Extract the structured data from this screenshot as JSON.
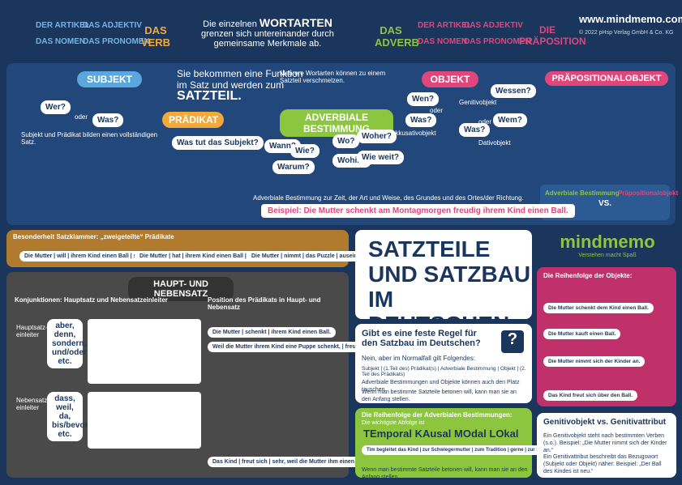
{
  "header": {
    "left_labels": [
      "DER ARTIKEL",
      "DAS ADJEKTIV",
      "DAS NOMEN",
      "DAS PRONOMEN"
    ],
    "verb": "DAS VERB",
    "intro_a": "Die einzelnen",
    "intro_b": "WORTARTEN",
    "intro_c": "grenzen sich untereinander durch gemeinsame Merkmale ab.",
    "adverb": "DAS ADVERB",
    "right_labels": [
      "DER ARTIKEL",
      "DAS ADJEKTIV",
      "DAS NOMEN",
      "DAS PRONOMEN"
    ],
    "praeposition": "DIE PRÄPOSITION",
    "url": "www.mindmemo.com",
    "copyright": "© 2022 pHsp Verlag GmbH & Co. KG"
  },
  "satzteil": {
    "line1": "Sie bekommen eine Funktion",
    "line2": "im Satz und werden zum",
    "line3": "SATZTEIL."
  },
  "subjekt": {
    "title": "SUBJEKT",
    "q1": "Wer?",
    "or": "oder",
    "q2": "Was?",
    "text": "Subjekt und Prädikat bilden einen vollständigen Satz."
  },
  "praedikat": {
    "title": "PRÄDIKAT",
    "question": "Was tut das Subjekt?"
  },
  "adverbiale": {
    "intro": "Mehrere Wortarten können zu einem Satzteil verschmelzen.",
    "title": "ADVERBIALE BESTIMMUNG",
    "questions": [
      "Wann?",
      "Wie?",
      "Warum?",
      "Wo?",
      "Woher?",
      "Wohin?",
      "Wie weit?"
    ],
    "text": "Adverbiale Bestimmung zur Zeit, der Art und Weise, des Grundes und des Ortes/der Richtung."
  },
  "objekt": {
    "title": "OBJEKT",
    "q_acc": "Wen?",
    "or1": "oder",
    "q_acc2": "Was?",
    "acc": "Akkusativobjekt",
    "gen": "Genitivobjekt",
    "q_gen": "Wessen?",
    "q_dat1": "Wem?",
    "or2": "oder",
    "q_dat2": "Was?",
    "dat": "Dativobjekt"
  },
  "praepositionalobjekt": {
    "title": "PRÄPOSITIONALOBJEKT",
    "left": "Adverbiale Bestimmung",
    "vs": "VS.",
    "right": "Präpositionalobjekt"
  },
  "beispiel": "Beispiel: Die Mutter schenkt am Montagmorgen freudig ihrem Kind einen Ball.",
  "satzklammer": {
    "title": "Besonderheit Satzklammer: „zweigeteilte“ Prädikate",
    "examples": [
      "Die Mutter | will | ihrem Kind einen Ball | schenken.",
      "Die Mutter | hat | ihrem Kind einen Ball | geschenkt.",
      "Die Mutter | nimmt | das Puzzle | auseinander."
    ]
  },
  "haupt": {
    "title": "HAUPT- UND NEBENSATZ",
    "konj": "Konjunktionen: Hauptsatz und Nebensatzeinleiter",
    "haupt_label": "Hauptsatz-einleiter",
    "haupt_words": "aber, denn, sondern, und/oder etc.",
    "neben_label": "Nebensatz-einleiter",
    "neben_words": "dass, weil, da, bis/bevor etc.",
    "position": "Position des Prädikats in Haupt- und Nebensatz",
    "examples": [
      "Die Mutter | schenkt | ihrem Kind einen Ball.",
      "Weil die Mutter ihrem Kind eine Puppe schenkt, | freut sich | die Tochter.",
      "Das Kind | freut sich | sehr, weil die Mutter ihm einen Ball | schenkt."
    ]
  },
  "main_title": [
    "SATZTEILE",
    "UND SATZBAU",
    "IM DEUTSCHEN"
  ],
  "logo": {
    "name": "mindmemo",
    "tagline": "Verstehen macht Spaß"
  },
  "regel": {
    "question": "Gibt es eine feste Regel für den Satzbau im Deutschen?",
    "answer": "Nein, aber im Normalfall gilt Folgendes:",
    "order": "Subjekt | (1.Teil des) Prädikat(s) | Adverbiale Bestimmung | Objekt | (2. Teil des Prädikats)",
    "note1": "Adverbiale Bestimmungen und Objekte können auch den Platz tauschen.",
    "note2": "Wenn man bestimmte Satzteile betonen will, kann man sie an den Anfang stellen."
  },
  "tekamolo": {
    "title": "Die Reihenfolge der Adverbialen Bestimmungen:",
    "sub": "Die wichtigste Abfolge ist",
    "words": [
      "TEmporal",
      "KAusal",
      "MOdal",
      "LOkal"
    ],
    "example": "Tim begleitet das Kind | zur Schwiegermutter | zum Tradition | gerne | zur Schule",
    "note": "Wenn man bestimmte Satzteile betonen will, kann man sie an den Anfang stellen."
  },
  "objekte": {
    "title": "Die Reihenfolge der Objekte:",
    "items": [
      "Die Mutter schenkt dem Kind einen Ball.",
      "Die Mutter kauft einen Ball.",
      "Die Mutter nimmt sich der Kinder an.",
      "Das Kind freut sich über den Ball."
    ]
  },
  "genitiv": {
    "title": "Genitivobjekt vs. Genitivattribut",
    "text1": "Ein Genitivobjekt steht nach bestimmten Verben (s.o.). Beispiel: „Die Mutter nimmt sich der Kinder an.“",
    "text2": "Ein Genitivattribut beschreibt das Bezugswort (Subjekt oder Objekt) näher: Beispiel: „Der Ball des Kindes ist neu.“"
  }
}
